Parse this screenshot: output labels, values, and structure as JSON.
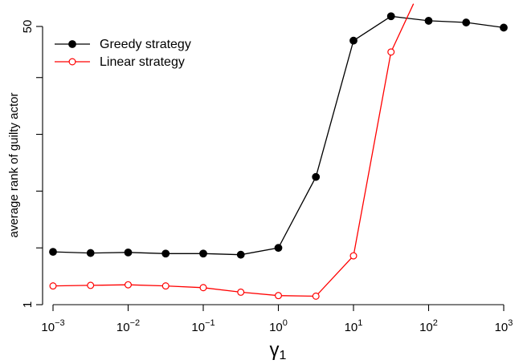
{
  "chart_data": {
    "type": "line",
    "xlabel": "γ",
    "xlabel_sub": "1",
    "ylabel": "average rank of guilty actor",
    "x_scale": "log",
    "xlim": [
      0.001,
      1000
    ],
    "ylim": [
      1,
      50
    ],
    "x_ticks": [
      {
        "value": 0.001,
        "base": "10",
        "exp": "−3"
      },
      {
        "value": 0.01,
        "base": "10",
        "exp": "−2"
      },
      {
        "value": 0.1,
        "base": "10",
        "exp": "−1"
      },
      {
        "value": 1,
        "base": "10",
        "exp": "0"
      },
      {
        "value": 10,
        "base": "10",
        "exp": "1"
      },
      {
        "value": 100,
        "base": "10",
        "exp": "2"
      },
      {
        "value": 1000,
        "base": "10",
        "exp": "3"
      }
    ],
    "y_ticks": [
      1,
      11,
      21,
      31,
      41,
      50
    ],
    "y_tick_labels": [
      "1",
      "",
      "",
      "",
      "",
      "50"
    ],
    "legend_position": "top-left",
    "x": [
      0.001,
      0.00316,
      0.01,
      0.0316,
      0.1,
      0.316,
      1,
      3.16,
      10,
      31.6,
      100,
      316,
      1000
    ],
    "series": [
      {
        "name": "Greedy strategy",
        "color": "#000000",
        "marker": "filled-circle",
        "values": [
          10.3,
          10.1,
          10.2,
          10.0,
          10.0,
          9.8,
          11.0,
          23.5,
          47.5,
          51.8,
          51.0,
          50.7,
          49.8
        ]
      },
      {
        "name": "Linear strategy",
        "color": "#ff0000",
        "marker": "open-circle",
        "values": [
          4.3,
          4.4,
          4.5,
          4.3,
          4.0,
          3.2,
          2.6,
          2.5,
          9.6,
          45.5,
          null,
          null,
          null
        ],
        "extends_beyond": {
          "x": 63,
          "y": 54
        }
      }
    ]
  }
}
